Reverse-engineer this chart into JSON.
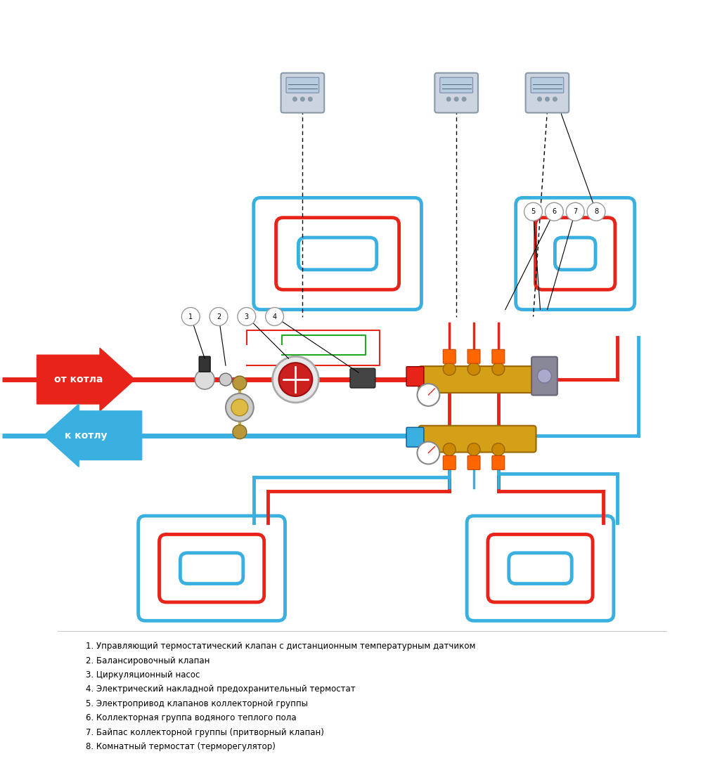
{
  "title": "",
  "bg_color": "#ffffff",
  "red_color": "#e8241a",
  "blue_color": "#3ab0e0",
  "dark_red": "#cc1111",
  "dark_blue": "#2299cc",
  "green_color": "#22aa22",
  "gold_color": "#d4a017",
  "gray_color": "#b0b8c8",
  "black": "#000000",
  "arrow_from_boiler_text": "от котла",
  "arrow_to_boiler_text": "к котлу",
  "legend": [
    "1. Управляющий термостатический клапан с дистанционным температурным датчиком",
    "2. Балансировочный клапан",
    "3. Циркуляционный насос",
    "4. Электрический накладной предохранительный термостат",
    "5. Электропривод клапанов коллекторной группы",
    "6. Коллекторная группа водяного теплого пола",
    "7. Байпас коллекторной группы (притворный клапан)",
    "8. Комнатный термостат (терморегулятор)"
  ]
}
